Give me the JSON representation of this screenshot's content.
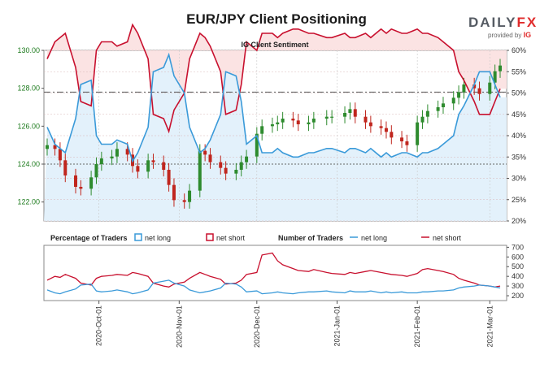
{
  "title": "EUR/JPY Client Positioning",
  "brand": {
    "name_a": "DAILY",
    "name_b": "FX",
    "provided_by": "provided by",
    "provider": "IG"
  },
  "colors": {
    "net_long": "#3a9ad9",
    "net_short": "#c8102e",
    "long_fill": "#e3f1fb",
    "short_fill": "#fbe3e3",
    "candle_up": "#2e8b2e",
    "candle_down": "#c0261e"
  },
  "chart_data": [
    {
      "type": "line",
      "title": "IG Client Sentiment",
      "description_series": [
        "price candles",
        "net long percentage",
        "net short percentage"
      ],
      "price_axis": {
        "side": "left",
        "ylim": [
          121.0,
          130.0
        ],
        "ticks": [
          "122.00",
          "124.00",
          "126.00",
          "128.00",
          "130.00"
        ],
        "tick_values": [
          122,
          124,
          126,
          128,
          130
        ]
      },
      "pct_axis": {
        "side": "right",
        "ylim": [
          20,
          60
        ],
        "ticks": [
          "20%",
          "25%",
          "30%",
          "35%",
          "40%",
          "45%",
          "50%",
          "55%",
          "60%"
        ],
        "tick_values": [
          20,
          25,
          30,
          35,
          40,
          45,
          50,
          55,
          60
        ]
      },
      "reference_lines": {
        "price_dashdot": 127.8,
        "price_dotted": 124.0
      },
      "x_dates": [
        "2020-09-11",
        "2020-09-14",
        "2020-09-16",
        "2020-09-18",
        "2020-09-22",
        "2020-09-24",
        "2020-09-28",
        "2020-09-30",
        "2020-10-02",
        "2020-10-06",
        "2020-10-08",
        "2020-10-12",
        "2020-10-14",
        "2020-10-16",
        "2020-10-20",
        "2020-10-22",
        "2020-10-26",
        "2020-10-28",
        "2020-10-30",
        "2020-11-03",
        "2020-11-05",
        "2020-11-09",
        "2020-11-11",
        "2020-11-13",
        "2020-11-17",
        "2020-11-19",
        "2020-11-23",
        "2020-11-25",
        "2020-11-27",
        "2020-12-01",
        "2020-12-03",
        "2020-12-07",
        "2020-12-09",
        "2020-12-11",
        "2020-12-15",
        "2020-12-17",
        "2020-12-21",
        "2020-12-23",
        "2020-12-28",
        "2020-12-30",
        "2021-01-04",
        "2021-01-06",
        "2021-01-08",
        "2021-01-12",
        "2021-01-14",
        "2021-01-18",
        "2021-01-20",
        "2021-01-22",
        "2021-01-26",
        "2021-01-28",
        "2021-02-01",
        "2021-02-03",
        "2021-02-05",
        "2021-02-09",
        "2021-02-11",
        "2021-02-15",
        "2021-02-17",
        "2021-02-19",
        "2021-02-23",
        "2021-02-25",
        "2021-03-01",
        "2021-03-03",
        "2021-03-05"
      ],
      "price_close": [
        125.0,
        124.8,
        124.2,
        123.4,
        122.8,
        122.7,
        123.3,
        124.0,
        124.3,
        124.4,
        124.8,
        124.5,
        123.9,
        123.6,
        124.2,
        124.1,
        123.7,
        122.9,
        122.1,
        122.0,
        122.6,
        124.7,
        124.5,
        124.1,
        123.8,
        123.5,
        123.7,
        124.1,
        124.4,
        125.6,
        126.0,
        126.1,
        126.2,
        126.4,
        126.3,
        126.1,
        126.2,
        126.4,
        126.5,
        126.5,
        126.7,
        126.9,
        126.5,
        126.2,
        126.0,
        125.9,
        125.7,
        125.4,
        125.2,
        125.0,
        126.2,
        126.5,
        126.8,
        127.0,
        127.2,
        127.5,
        127.8,
        128.2,
        128.0,
        127.7,
        128.3,
        128.9,
        129.2
      ],
      "net_long_pct": [
        42,
        38,
        37,
        36,
        44,
        52,
        53,
        40,
        38,
        38,
        39,
        38,
        34,
        36,
        42,
        55,
        56,
        59,
        54,
        50,
        42,
        36,
        37,
        39,
        45,
        55,
        54,
        48,
        38,
        40,
        36,
        36,
        37,
        36,
        35,
        35,
        36,
        36,
        37,
        37,
        36,
        37,
        37,
        36,
        37,
        35,
        36,
        35,
        36,
        36,
        35,
        36,
        36,
        37,
        38,
        40,
        45,
        47,
        52,
        55,
        55,
        52,
        49
      ],
      "net_short_pct": [
        58,
        62,
        63,
        64,
        56,
        48,
        47,
        60,
        62,
        62,
        61,
        62,
        66,
        64,
        58,
        45,
        44,
        41,
        46,
        50,
        58,
        64,
        63,
        61,
        55,
        45,
        46,
        52,
        62,
        60,
        64,
        64,
        63,
        64,
        65,
        65,
        64,
        64,
        63,
        63,
        64,
        63,
        63,
        64,
        63,
        65,
        64,
        65,
        64,
        64,
        65,
        64,
        64,
        63,
        62,
        60,
        55,
        53,
        48,
        45,
        45,
        48,
        51
      ]
    },
    {
      "type": "line",
      "title": "",
      "legend": {
        "pct_label": "Percentage of Traders",
        "pct_long": "net long",
        "pct_short": "net short",
        "num_label": "Number of Traders",
        "num_long": "net long",
        "num_short": "net short"
      },
      "count_axis": {
        "side": "right",
        "ylim": [
          150,
          720
        ],
        "ticks": [
          "200",
          "300",
          "400",
          "500",
          "600",
          "700"
        ],
        "tick_values": [
          200,
          300,
          400,
          500,
          600,
          700
        ]
      },
      "x_tick_labels": [
        "2020-Oct-01",
        "2020-Nov-01",
        "2020-Dec-01",
        "2021-Jan-01",
        "2021-Feb-01",
        "2021-Mar-01"
      ],
      "x_tick_dates": [
        "2020-10-01",
        "2020-11-01",
        "2020-12-01",
        "2021-01-01",
        "2021-02-01",
        "2021-03-01"
      ],
      "net_long_traders": [
        260,
        230,
        220,
        240,
        270,
        310,
        320,
        250,
        240,
        250,
        260,
        240,
        220,
        230,
        260,
        330,
        350,
        360,
        330,
        300,
        260,
        230,
        240,
        250,
        280,
        330,
        320,
        290,
        240,
        250,
        220,
        230,
        240,
        230,
        220,
        230,
        240,
        240,
        250,
        240,
        230,
        250,
        240,
        240,
        250,
        230,
        240,
        230,
        240,
        230,
        230,
        240,
        240,
        250,
        250,
        260,
        280,
        290,
        300,
        310,
        300,
        290,
        280
      ],
      "net_short_traders": [
        360,
        400,
        390,
        420,
        380,
        330,
        310,
        380,
        400,
        410,
        420,
        410,
        440,
        430,
        400,
        330,
        300,
        290,
        320,
        340,
        380,
        440,
        420,
        400,
        370,
        320,
        330,
        360,
        420,
        440,
        620,
        640,
        560,
        520,
        480,
        460,
        450,
        470,
        440,
        430,
        420,
        440,
        430,
        450,
        460,
        440,
        430,
        420,
        410,
        400,
        430,
        470,
        480,
        460,
        450,
        420,
        380,
        360,
        330,
        310,
        300,
        290,
        300
      ]
    }
  ]
}
